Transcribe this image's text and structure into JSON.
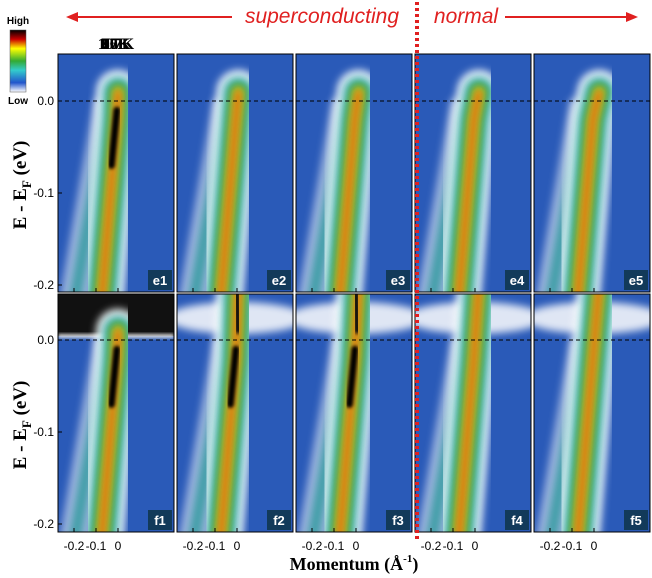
{
  "header": {
    "left": "superconducting",
    "right": "normal"
  },
  "colorbar": {
    "high": "High",
    "low": "Low"
  },
  "temperatures": [
    "16K",
    "70K",
    "80K",
    "97K",
    "107K"
  ],
  "panels": {
    "top": [
      "e1",
      "e2",
      "e3",
      "e4",
      "e5"
    ],
    "bottom": [
      "f1",
      "f2",
      "f3",
      "f4",
      "f5"
    ]
  },
  "y_axis": {
    "label": [
      "E - E",
      "F",
      " (eV)"
    ],
    "ticks": [
      {
        "value": 0,
        "label": "0.0"
      },
      -0.1,
      -0.2
    ]
  },
  "x_axis": {
    "label": [
      "Momentum (Å",
      "-1",
      ")"
    ],
    "ticks": [
      -0.2,
      -0.1,
      0
    ]
  }
}
